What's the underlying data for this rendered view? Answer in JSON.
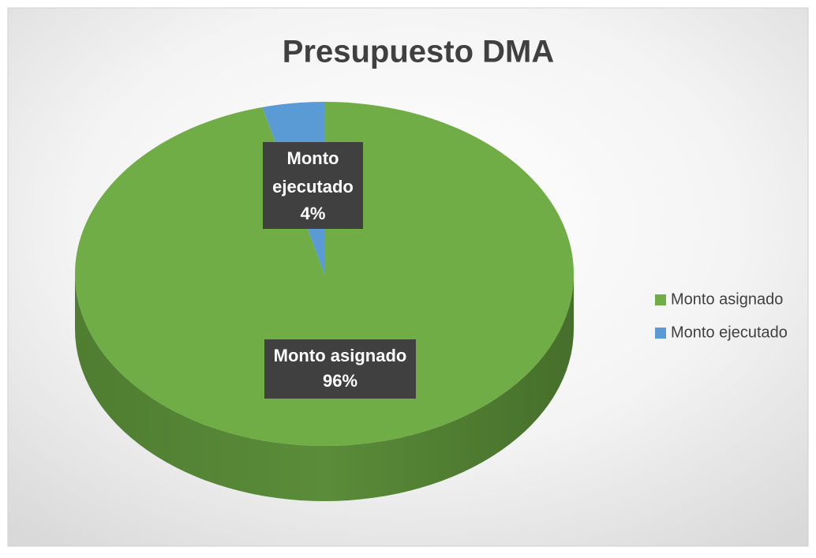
{
  "chart_data": {
    "type": "pie",
    "title": "Presupuesto DMA",
    "categories": [
      "Monto asignado",
      "Monto ejecutado"
    ],
    "values": [
      96,
      4
    ],
    "value_labels": [
      "96%",
      "4%"
    ],
    "colors": [
      "#70ad47",
      "#5b9bd5"
    ],
    "legend": "right"
  }
}
